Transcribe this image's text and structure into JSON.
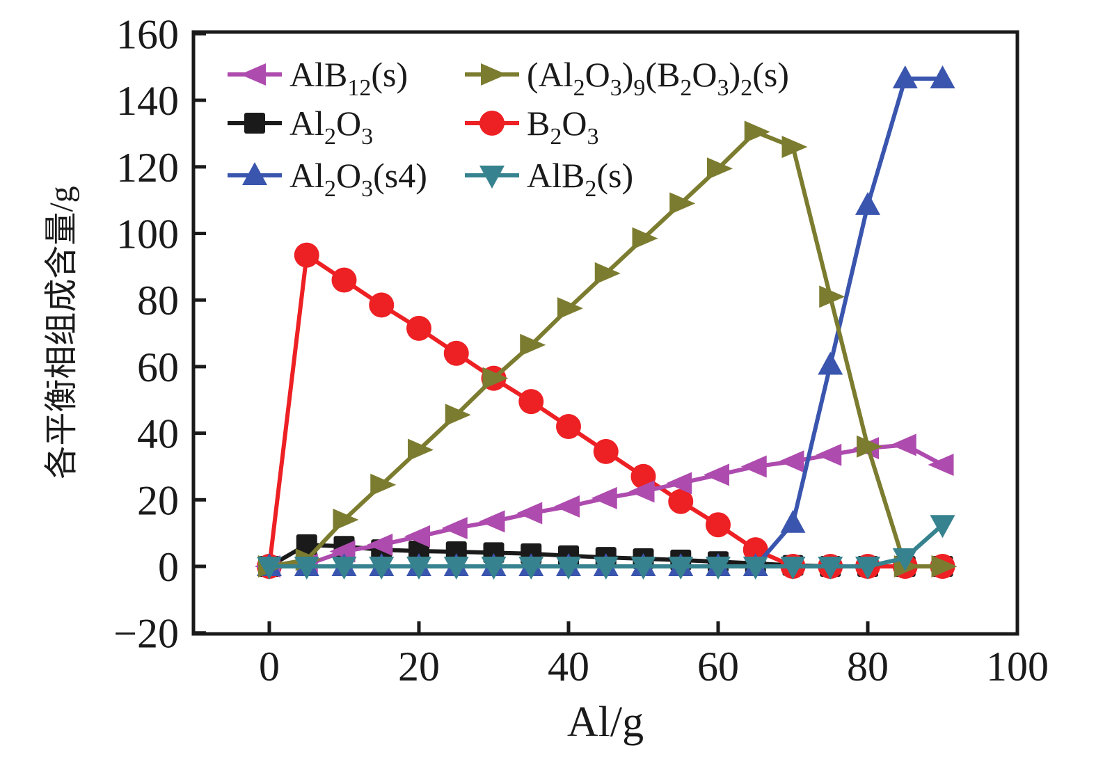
{
  "chart_data": {
    "type": "line",
    "title": "",
    "xlabel": "Al/g",
    "ylabel": "各平衡相组成含量/g",
    "xlim": [
      -10,
      100
    ],
    "ylim": [
      -20,
      160
    ],
    "grid": false,
    "legend_position": "top-left-inside",
    "legend_columns": 2,
    "x_ticks": [
      "0",
      "20",
      "40",
      "60",
      "80",
      "100"
    ],
    "x_tick_values": [
      0,
      20,
      40,
      60,
      80,
      100
    ],
    "y_ticks": [
      "−20",
      "0",
      "20",
      "40",
      "60",
      "80",
      "100",
      "120",
      "140",
      "160"
    ],
    "y_tick_values": [
      -20,
      0,
      20,
      40,
      60,
      80,
      100,
      120,
      140,
      160
    ],
    "x": [
      0,
      5,
      10,
      15,
      20,
      25,
      30,
      35,
      40,
      45,
      50,
      55,
      60,
      65,
      70,
      75,
      80,
      85,
      90
    ],
    "series": [
      {
        "name": "AlB12(s)",
        "label_markup": "AlB_{12}(s)",
        "color": "#ae4bae",
        "marker": "triangle-left",
        "z": 3,
        "values": [
          0,
          0.5,
          4.5,
          6.5,
          9,
          11.5,
          13.5,
          16,
          18,
          20.5,
          22.5,
          25,
          27.5,
          30,
          31.5,
          33.5,
          35.5,
          36.5,
          30.5
        ]
      },
      {
        "name": "(Al2O3)9(B2O3)2(s)",
        "label_markup": "(Al_{2}O_{3})_{9}(B_{2}O_{3})_{2}(s)",
        "color": "#7c7c30",
        "marker": "triangle-right",
        "z": 5,
        "values": [
          0,
          2,
          14,
          24.5,
          35,
          45.5,
          56.5,
          66.5,
          77.5,
          88,
          98.5,
          109,
          119.5,
          130.5,
          126,
          81,
          36,
          0,
          0
        ]
      },
      {
        "name": "Al2O3",
        "label_markup": "Al_{2}O_{3}",
        "color": "#1a1a1a",
        "marker": "square",
        "z": 1,
        "values": [
          0,
          6.5,
          6,
          5,
          4.6,
          4.4,
          4.1,
          3.8,
          3.2,
          2.7,
          2.3,
          1.9,
          1.4,
          0.9,
          0.3,
          0,
          0,
          0,
          0
        ]
      },
      {
        "name": "B2O3",
        "label_markup": "B_{2}O_{3}",
        "color": "#ed2024",
        "marker": "circle",
        "z": 2,
        "values": [
          0,
          93.5,
          86,
          78.5,
          71.5,
          64,
          56.5,
          49.5,
          42,
          34.5,
          27,
          19.5,
          12.5,
          5,
          0,
          0,
          0,
          0,
          0
        ]
      },
      {
        "name": "Al2O3(s4)",
        "label_markup": "Al_{2}O_{3}(s4)",
        "color": "#3a55ae",
        "marker": "triangle-up",
        "z": 4,
        "values": [
          0,
          0,
          0,
          0,
          0,
          0,
          0,
          0,
          0,
          0,
          0,
          0,
          0,
          0,
          13,
          60.5,
          108.5,
          146.5,
          146.5
        ]
      },
      {
        "name": "AlB2(s)",
        "label_markup": "AlB_{2}(s)",
        "color": "#36828e",
        "marker": "triangle-down",
        "z": 6,
        "values": [
          0,
          0,
          0,
          0,
          0,
          0,
          0,
          0,
          0,
          0,
          0,
          0,
          0,
          0,
          0,
          0,
          0,
          2.5,
          12.5
        ]
      }
    ],
    "legend_order": [
      "AlB12(s)",
      "(Al2O3)9(B2O3)2(s)",
      "Al2O3",
      "B2O3",
      "Al2O3(s4)",
      "AlB2(s)"
    ]
  },
  "styles": {
    "axis_color": "#1a1a1a",
    "background": "#ffffff"
  }
}
